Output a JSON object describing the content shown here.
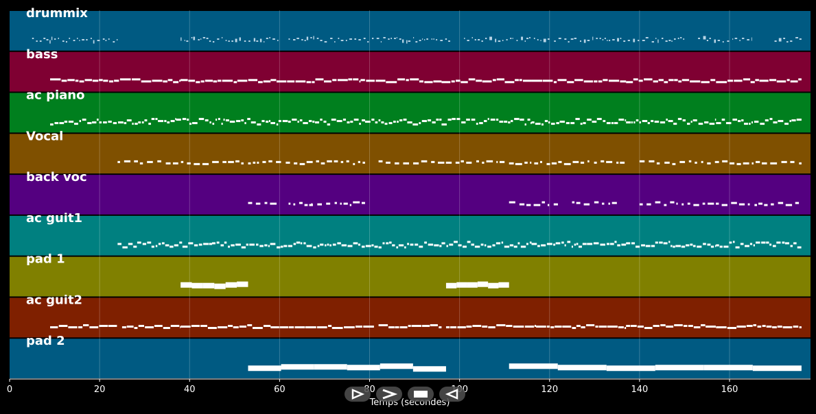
{
  "chart_data": {
    "type": "piano-roll",
    "xlabel": "Temps (secondes)",
    "xlim": [
      0,
      178
    ],
    "x_ticks": [
      0,
      20,
      40,
      60,
      80,
      100,
      120,
      140,
      160
    ],
    "x_tick_labels": [
      "0",
      "20",
      "40",
      "60",
      "80",
      "100",
      "120",
      "140",
      "160"
    ],
    "grid": true,
    "tracks": [
      {
        "name": "drummix",
        "color": "#005a82",
        "note_color": "#b8d4e6",
        "notes": [
          [
            5,
            24
          ],
          [
            38,
            60
          ],
          [
            62,
            86
          ],
          [
            86,
            98
          ],
          [
            101,
            120
          ],
          [
            121,
            135
          ],
          [
            135,
            150
          ],
          [
            153,
            165
          ],
          [
            170,
            176
          ]
        ],
        "density": "sparse-hits"
      },
      {
        "name": "bass",
        "color": "#7f0032",
        "note_color": "#ffffff",
        "notes": [
          [
            9,
            38
          ],
          [
            38,
            58
          ],
          [
            58,
            78
          ],
          [
            78,
            96
          ],
          [
            96,
            116
          ],
          [
            116,
            137
          ],
          [
            137,
            157
          ],
          [
            157,
            176
          ]
        ],
        "density": "line"
      },
      {
        "name": "ac piano",
        "color": "#007f1e",
        "note_color": "#ffffff",
        "notes": [
          [
            9,
            37
          ],
          [
            37,
            58
          ],
          [
            58,
            79
          ],
          [
            79,
            96
          ],
          [
            96,
            116
          ],
          [
            116,
            137
          ],
          [
            137,
            157
          ],
          [
            157,
            176
          ]
        ],
        "density": "dense"
      },
      {
        "name": "Vocal",
        "color": "#7f5000",
        "note_color": "#ffffff",
        "notes": [
          [
            24,
            52
          ],
          [
            53,
            79
          ],
          [
            82,
            110
          ],
          [
            111,
            137
          ],
          [
            140,
            176
          ]
        ],
        "density": "dashes"
      },
      {
        "name": "back voc",
        "color": "#540080",
        "note_color": "#ffffff",
        "notes": [
          [
            53,
            60
          ],
          [
            62,
            68
          ],
          [
            67,
            79
          ],
          [
            111,
            122
          ],
          [
            125,
            136
          ],
          [
            140,
            176
          ]
        ],
        "density": "dashes"
      },
      {
        "name": "ac guit1",
        "color": "#008080",
        "note_color": "#ffffff",
        "notes": [
          [
            24,
            45
          ],
          [
            45,
            66
          ],
          [
            66,
            96
          ],
          [
            96,
            116
          ],
          [
            116,
            137
          ],
          [
            137,
            157
          ],
          [
            157,
            176
          ]
        ],
        "density": "dense"
      },
      {
        "name": "pad 1",
        "color": "#808000",
        "note_color": "#ffffff",
        "notes": [
          [
            38,
            53
          ],
          [
            97,
            111
          ]
        ],
        "density": "pad"
      },
      {
        "name": "ac guit2",
        "color": "#7f2000",
        "note_color": "#ffffff",
        "notes": [
          [
            9,
            24
          ],
          [
            25,
            38
          ],
          [
            38,
            58
          ],
          [
            58,
            81
          ],
          [
            82,
            96
          ],
          [
            97,
            117
          ],
          [
            117,
            137
          ],
          [
            137,
            157
          ],
          [
            157,
            176
          ]
        ],
        "density": "line"
      },
      {
        "name": "pad 2",
        "color": "#005a82",
        "note_color": "#ffffff",
        "notes": [
          [
            53,
            97
          ],
          [
            111,
            176
          ]
        ],
        "density": "pad"
      }
    ]
  },
  "transport": {
    "play_label": "play",
    "forward_label": "forward",
    "stop_label": "stop",
    "back_label": "back"
  }
}
